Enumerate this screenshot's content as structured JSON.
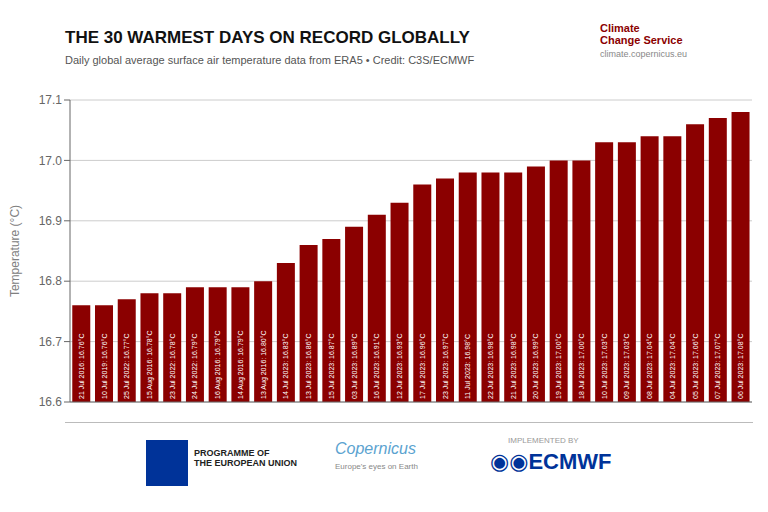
{
  "chart_data": {
    "type": "bar",
    "title": "THE 30 WARMEST DAYS ON RECORD GLOBALLY",
    "subtitle": "Daily global average surface air temperature data from ERA5  •  Credit: C3S/ECMWF",
    "y_label": "Temperature (°C)",
    "categories": [
      null,
      null,
      null,
      null,
      null,
      null,
      null,
      null,
      null,
      null,
      null,
      null,
      null,
      null,
      null,
      null,
      null,
      null,
      null,
      null,
      null,
      null,
      null,
      null,
      null,
      null,
      null,
      null,
      null,
      null
    ],
    "values": [
      16.76,
      16.76,
      16.77,
      16.78,
      16.78,
      16.79,
      16.79,
      16.79,
      16.8,
      16.83,
      16.86,
      16.87,
      16.89,
      16.91,
      16.93,
      16.96,
      16.97,
      16.98,
      16.98,
      16.98,
      16.99,
      17.0,
      17.0,
      17.03,
      17.03,
      17.04,
      17.04,
      17.06,
      17.07,
      17.08
    ],
    "value_labels": [
      "21 Jul 2016: 16.76°C",
      "10 Jul 2019: 16.76°C",
      "25 Jul 2022: 16.77°C",
      "15 Aug 2016: 16.78°C",
      "23 Jul 2022: 16.78°C",
      "24 Jul 2022: 16.79°C",
      "16 Aug 2016: 16.79°C",
      "14 Aug 2016: 16.79°C",
      "13 Aug 2016: 16.80°C",
      "14 Jul 2023: 16.83°C",
      "13 Jul 2023: 16.86°C",
      "15 Jul 2023: 16.87°C",
      "03 Jul 2023: 16.89°C",
      "16 Jul 2023: 16.91°C",
      "12 Jul 2023: 16.93°C",
      "17 Jul 2023: 16.96°C",
      "23 Jul 2023: 16.97°C",
      "11 Jul 2023: 16.98°C",
      "22 Jul 2023: 16.98°C",
      "21 Jul 2023: 16.98°C",
      "20 Jul 2023: 16.99°C",
      "19 Jul 2023: 17.00°C",
      "18 Jul 2023: 17.00°C",
      "10 Jul 2023: 17.03°C",
      "09 Jul 2023: 17.03°C",
      "08 Jul 2023: 17.04°C",
      "04 Jul 2023: 17.04°C",
      "05 Jul 2023: 17.06°C",
      "07 Jul 2023: 17.07°C",
      "06 Jul 2023: 17.08°C"
    ],
    "data_labels": true,
    "color": "#8B0000",
    "ylim": [
      16.6,
      17.1
    ],
    "yticks": [
      16.6,
      16.7,
      16.8,
      16.9,
      {
        "value": 17.0,
        "label": "17.0"
      },
      17.1
    ],
    "grid": true,
    "tick_labels": "y",
    "annotations": [
      "Climate",
      "Change Service",
      "climate.copernicus.eu",
      "PROGRAMME OF",
      "THE EUROPEAN UNION",
      "Copernicus",
      "Europe's eyes on Earth",
      "IMPLEMENTED BY",
      "◉◉ECMWF"
    ]
  }
}
